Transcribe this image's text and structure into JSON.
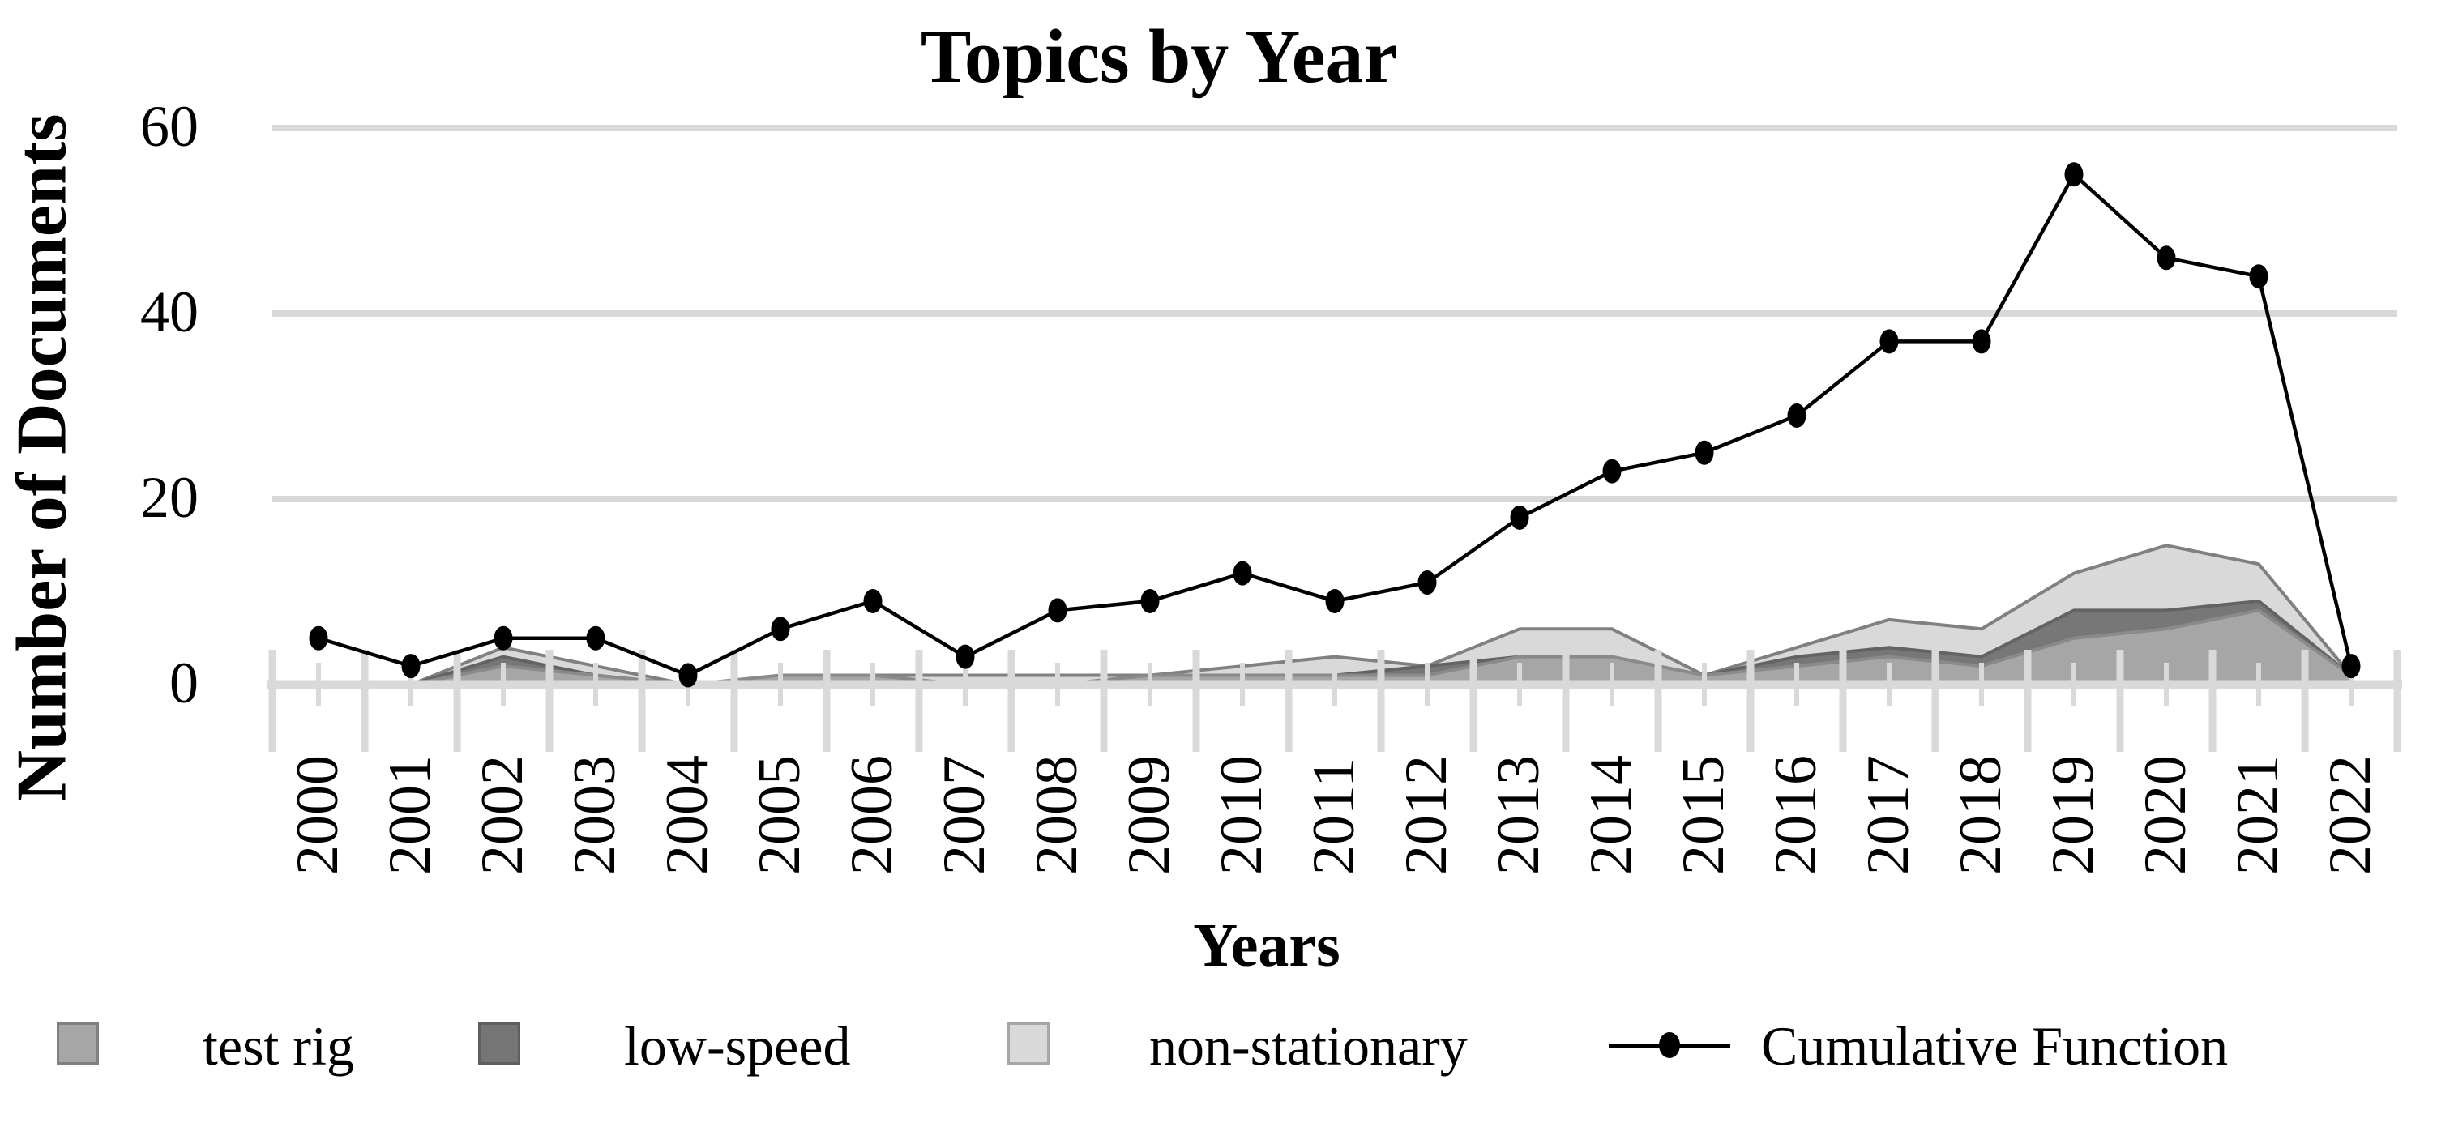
{
  "legend": {
    "items": [
      {
        "label": "test rig",
        "swatch": "#a6a6a6",
        "swatch_border": "#808080"
      },
      {
        "label": "low-speed",
        "swatch": "#757575",
        "swatch_border": "#5f5f5f"
      },
      {
        "label": "non-stationary",
        "swatch": "#d9d9d9",
        "swatch_border": "#a6a6a6"
      },
      {
        "label": "Cumulative Function",
        "marker": "line-dot",
        "color": "#000000"
      }
    ]
  },
  "chart_data": {
    "type": "combo-area-line",
    "title": "Topics by Year",
    "xlabel": "Years",
    "ylabel": "Number of Documents",
    "categories": [
      2000,
      2001,
      2002,
      2003,
      2004,
      2005,
      2006,
      2007,
      2008,
      2009,
      2010,
      2011,
      2012,
      2013,
      2014,
      2015,
      2016,
      2017,
      2018,
      2019,
      2020,
      2021,
      2022
    ],
    "areas": [
      {
        "name": "non-stationary",
        "fill": "#d9d9d9",
        "stroke": "#808080",
        "values": [
          0,
          0,
          4,
          2,
          0,
          0,
          1,
          1,
          1,
          1,
          2,
          3,
          2,
          6,
          6,
          1,
          4,
          7,
          6,
          12,
          15,
          13,
          1
        ]
      },
      {
        "name": "low-speed",
        "fill": "#777777",
        "stroke": "#636363",
        "values": [
          0,
          0,
          3,
          1,
          0,
          0,
          0,
          0,
          0,
          0,
          0,
          1,
          2,
          3,
          3,
          1,
          3,
          4,
          3,
          8,
          8,
          9,
          1
        ]
      },
      {
        "name": "test rig",
        "fill": "#a6a6a6",
        "stroke": "#8a8a8a",
        "values": [
          0,
          0,
          2,
          1,
          0,
          1,
          1,
          0,
          0,
          1,
          1,
          1,
          1,
          3,
          3,
          1,
          2,
          3,
          2,
          5,
          6,
          8,
          1
        ]
      }
    ],
    "line": {
      "name": "Cumulative Function",
      "color": "#000000",
      "values": [
        5,
        2,
        5,
        5,
        1,
        6,
        9,
        3,
        8,
        9,
        12,
        9,
        11,
        18,
        23,
        25,
        29,
        37,
        37,
        55,
        46,
        44,
        2
      ]
    },
    "y_ticks": [
      0,
      20,
      40,
      60
    ],
    "ylim": [
      0,
      60
    ],
    "grid": "horizontal",
    "gridline_color": "#d9d9d9",
    "tick_color": "#d9d9d9",
    "legend_position": "bottom"
  }
}
